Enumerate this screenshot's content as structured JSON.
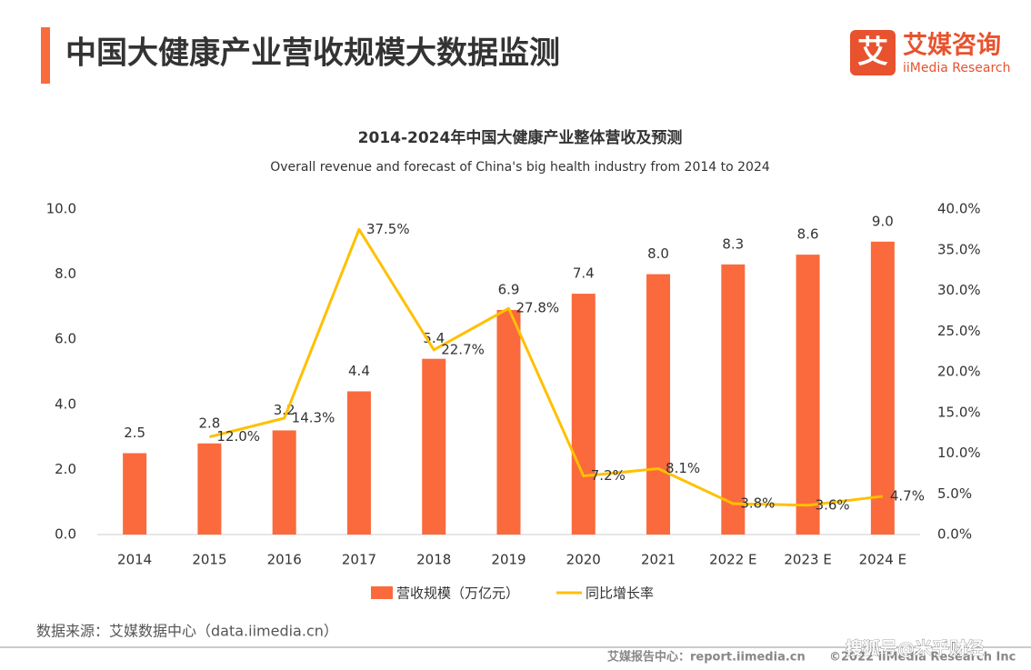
{
  "header": {
    "title": "中国大健康产业营收规模大数据监测",
    "logo_mark": "艾",
    "logo_name": "艾媒咨询",
    "logo_sub": "iiMedia Research"
  },
  "chart_data": {
    "type": "bar",
    "title": "2014-2024年中国大健康产业整体营收及预测",
    "subtitle": "Overall revenue and forecast of China's big health industry from 2014 to 2024",
    "categories": [
      "2014",
      "2015",
      "2016",
      "2017",
      "2018",
      "2019",
      "2020",
      "2021",
      "2022 E",
      "2023 E",
      "2024 E"
    ],
    "series": [
      {
        "name": "营收规模（万亿元）",
        "color": "#fa6a3c",
        "values": [
          2.5,
          2.8,
          3.2,
          4.4,
          5.4,
          6.9,
          7.4,
          8.0,
          8.3,
          8.6,
          9.0
        ],
        "value_labels": [
          "2.5",
          "2.8",
          "3.2",
          "4.4",
          "5.4",
          "6.9",
          "7.4",
          "8.0",
          "8.3",
          "8.6",
          "9.0"
        ]
      },
      {
        "name": "同比增长率",
        "color": "#ffc000",
        "type": "line",
        "axis": "y2",
        "values": [
          null,
          12.0,
          14.3,
          37.5,
          22.7,
          27.8,
          7.2,
          8.1,
          3.8,
          3.6,
          4.7
        ],
        "value_labels": [
          null,
          "12.0%",
          "14.3%",
          "37.5%",
          "22.7%",
          "27.8%",
          "7.2%",
          "8.1%",
          "3.8%",
          "3.6%",
          "4.7%"
        ]
      }
    ],
    "ylim": [
      0,
      10
    ],
    "yticks": [
      {
        "value": 0,
        "label": "0.0"
      },
      {
        "value": 2,
        "label": "2.0"
      },
      {
        "value": 4,
        "label": "4.0"
      },
      {
        "value": 6,
        "label": "6.0"
      },
      {
        "value": 8,
        "label": "8.0"
      },
      {
        "value": 10,
        "label": "10.0"
      }
    ],
    "y2lim": [
      0,
      40
    ],
    "y2ticks": [
      {
        "value": 0,
        "label": "0.0%"
      },
      {
        "value": 5,
        "label": "5.0%"
      },
      {
        "value": 10,
        "label": "10.0%"
      },
      {
        "value": 15,
        "label": "15.0%"
      },
      {
        "value": 20,
        "label": "20.0%"
      },
      {
        "value": 25,
        "label": "25.0%"
      },
      {
        "value": 30,
        "label": "30.0%"
      },
      {
        "value": 35,
        "label": "35.0%"
      },
      {
        "value": 40,
        "label": "40.0%"
      }
    ],
    "grid": false
  },
  "footer": {
    "source": "数据来源：艾媒数据中心（data.iimedia.cn）",
    "report_center": "艾媒报告中心：report.iimedia.cn",
    "copyright": "©2022  iiMedia Research  Inc",
    "watermark": "搜狐号@米乎财经"
  }
}
